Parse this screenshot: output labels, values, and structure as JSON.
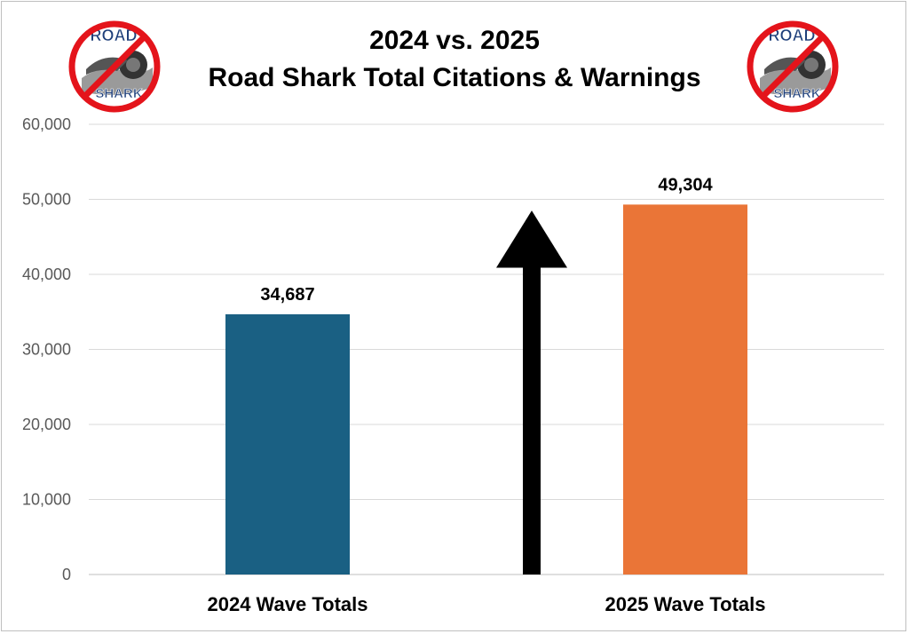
{
  "chart_data": {
    "type": "bar",
    "title_line1": "2024 vs. 2025",
    "title_line2": "Road Shark Total Citations & Warnings",
    "categories": [
      "2024 Wave Totals",
      "2025 Wave Totals"
    ],
    "values": [
      34687,
      49304
    ],
    "data_labels": [
      "34,687",
      "49,304"
    ],
    "colors": [
      "#1a6083",
      "#ea7537"
    ],
    "ylim": [
      0,
      60000
    ],
    "yticks": [
      0,
      10000,
      20000,
      30000,
      40000,
      50000,
      60000
    ],
    "ytick_labels": [
      "0",
      "10,000",
      "20,000",
      "30,000",
      "40,000",
      "50,000",
      "60,000"
    ],
    "grid": true,
    "annotation": "up-arrow"
  },
  "logo": {
    "text_top": "ROAD",
    "text_bottom": "SHARK"
  }
}
